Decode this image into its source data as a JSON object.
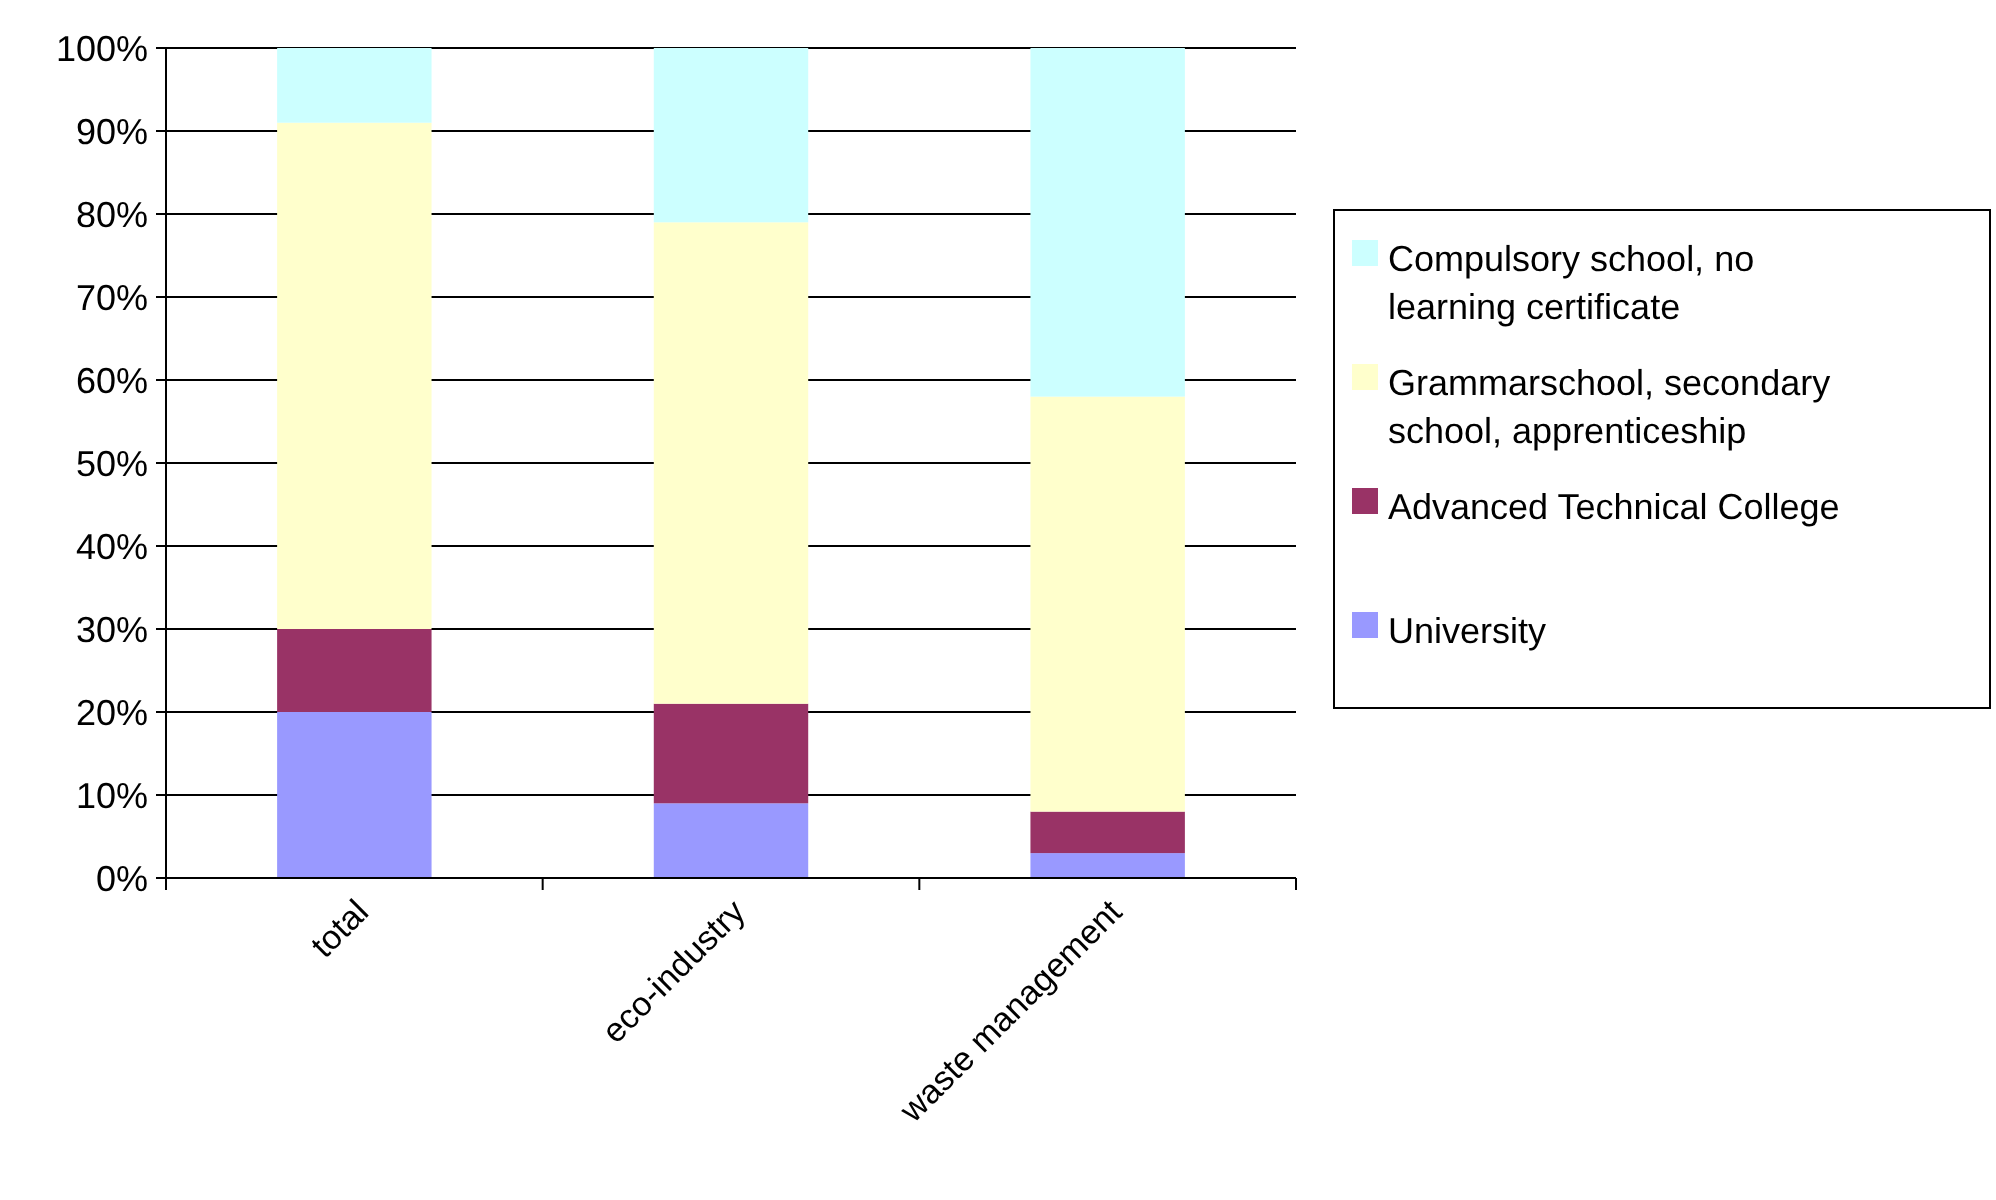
{
  "chart_data": {
    "type": "bar",
    "stacked": true,
    "categories": [
      "total",
      "eco-industry",
      "waste management"
    ],
    "series": [
      {
        "name": "University",
        "color": "#9999ff",
        "values": [
          20,
          9,
          3
        ]
      },
      {
        "name": "Advanced Technical College",
        "color": "#993366",
        "values": [
          10,
          12,
          5
        ]
      },
      {
        "name": "Grammarschool, secondary school, apprenticeship",
        "color": "#ffffcc",
        "values": [
          61,
          58,
          50
        ]
      },
      {
        "name": "Compulsory school, no learning certificate",
        "color": "#ccffff",
        "values": [
          9,
          21,
          42
        ]
      }
    ],
    "ylim": [
      0,
      100
    ],
    "yticks": [
      {
        "value": 0,
        "label": "0%"
      },
      {
        "value": 10,
        "label": "10%"
      },
      {
        "value": 20,
        "label": "20%"
      },
      {
        "value": 30,
        "label": "30%"
      },
      {
        "value": 40,
        "label": "40%"
      },
      {
        "value": 50,
        "label": "50%"
      },
      {
        "value": 60,
        "label": "60%"
      },
      {
        "value": 70,
        "label": "70%"
      },
      {
        "value": 80,
        "label": "80%"
      },
      {
        "value": 90,
        "label": "90%"
      },
      {
        "value": 100,
        "label": "100%"
      }
    ],
    "grid": "y",
    "legend": "right"
  }
}
